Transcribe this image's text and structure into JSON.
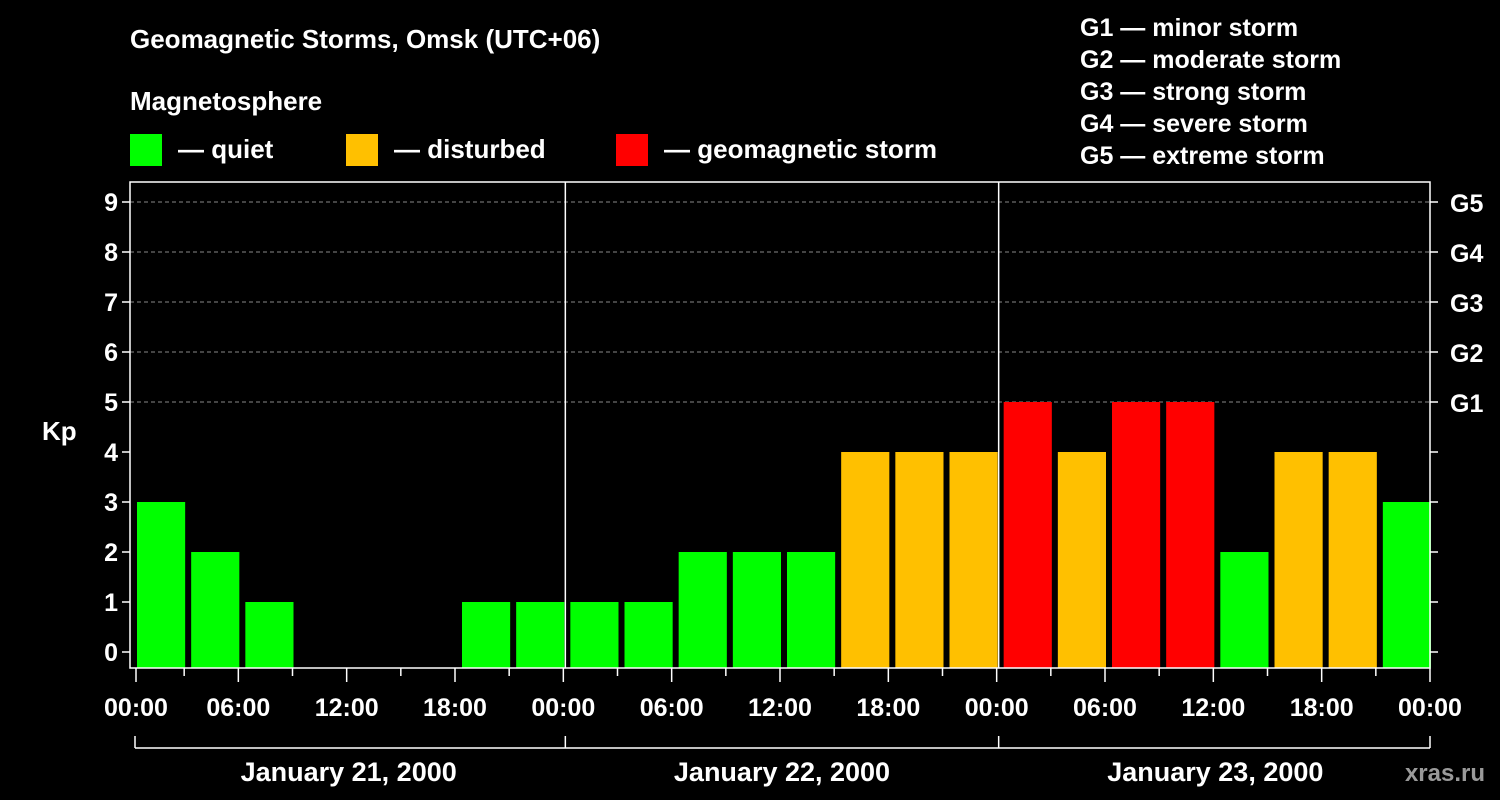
{
  "title": "Geomagnetic Storms, Omsk (UTC+06)",
  "subtitle": "Magnetosphere",
  "legend": [
    {
      "label": "— quiet",
      "color": "#00ff00"
    },
    {
      "label": "— disturbed",
      "color": "#ffc000"
    },
    {
      "label": "— geomagnetic storm",
      "color": "#ff0000"
    }
  ],
  "g_scale": [
    "G1 — minor storm",
    "G2 — moderate storm",
    "G3 — strong storm",
    "G4 — severe storm",
    "G5 — extreme storm"
  ],
  "watermark": "xras.ru",
  "chart_data": {
    "type": "bar",
    "ylabel": "Kp",
    "ylim": [
      0,
      9
    ],
    "yticks": [
      "0",
      "1",
      "2",
      "3",
      "4",
      "5",
      "6",
      "7",
      "8",
      "9"
    ],
    "right_ticks": [
      {
        "kp": 5,
        "label": "G1"
      },
      {
        "kp": 6,
        "label": "G2"
      },
      {
        "kp": 7,
        "label": "G3"
      },
      {
        "kp": 8,
        "label": "G4"
      },
      {
        "kp": 9,
        "label": "G5"
      }
    ],
    "x_tick_labels": [
      "00:00",
      "06:00",
      "12:00",
      "18:00",
      "00:00",
      "06:00",
      "12:00",
      "18:00",
      "00:00",
      "06:00",
      "12:00",
      "18:00",
      "00:00"
    ],
    "days": [
      "January 21, 2000",
      "January 22, 2000",
      "January 23, 2000"
    ],
    "interval_hours": 3,
    "values": [
      3,
      2,
      1,
      0,
      0,
      0,
      1,
      1,
      1,
      1,
      2,
      2,
      2,
      4,
      4,
      4,
      5,
      4,
      5,
      5,
      2,
      4,
      4,
      3
    ],
    "colors": {
      "quiet": "#00ff00",
      "disturbed": "#ffc000",
      "storm": "#ff0000"
    },
    "grid": true
  }
}
